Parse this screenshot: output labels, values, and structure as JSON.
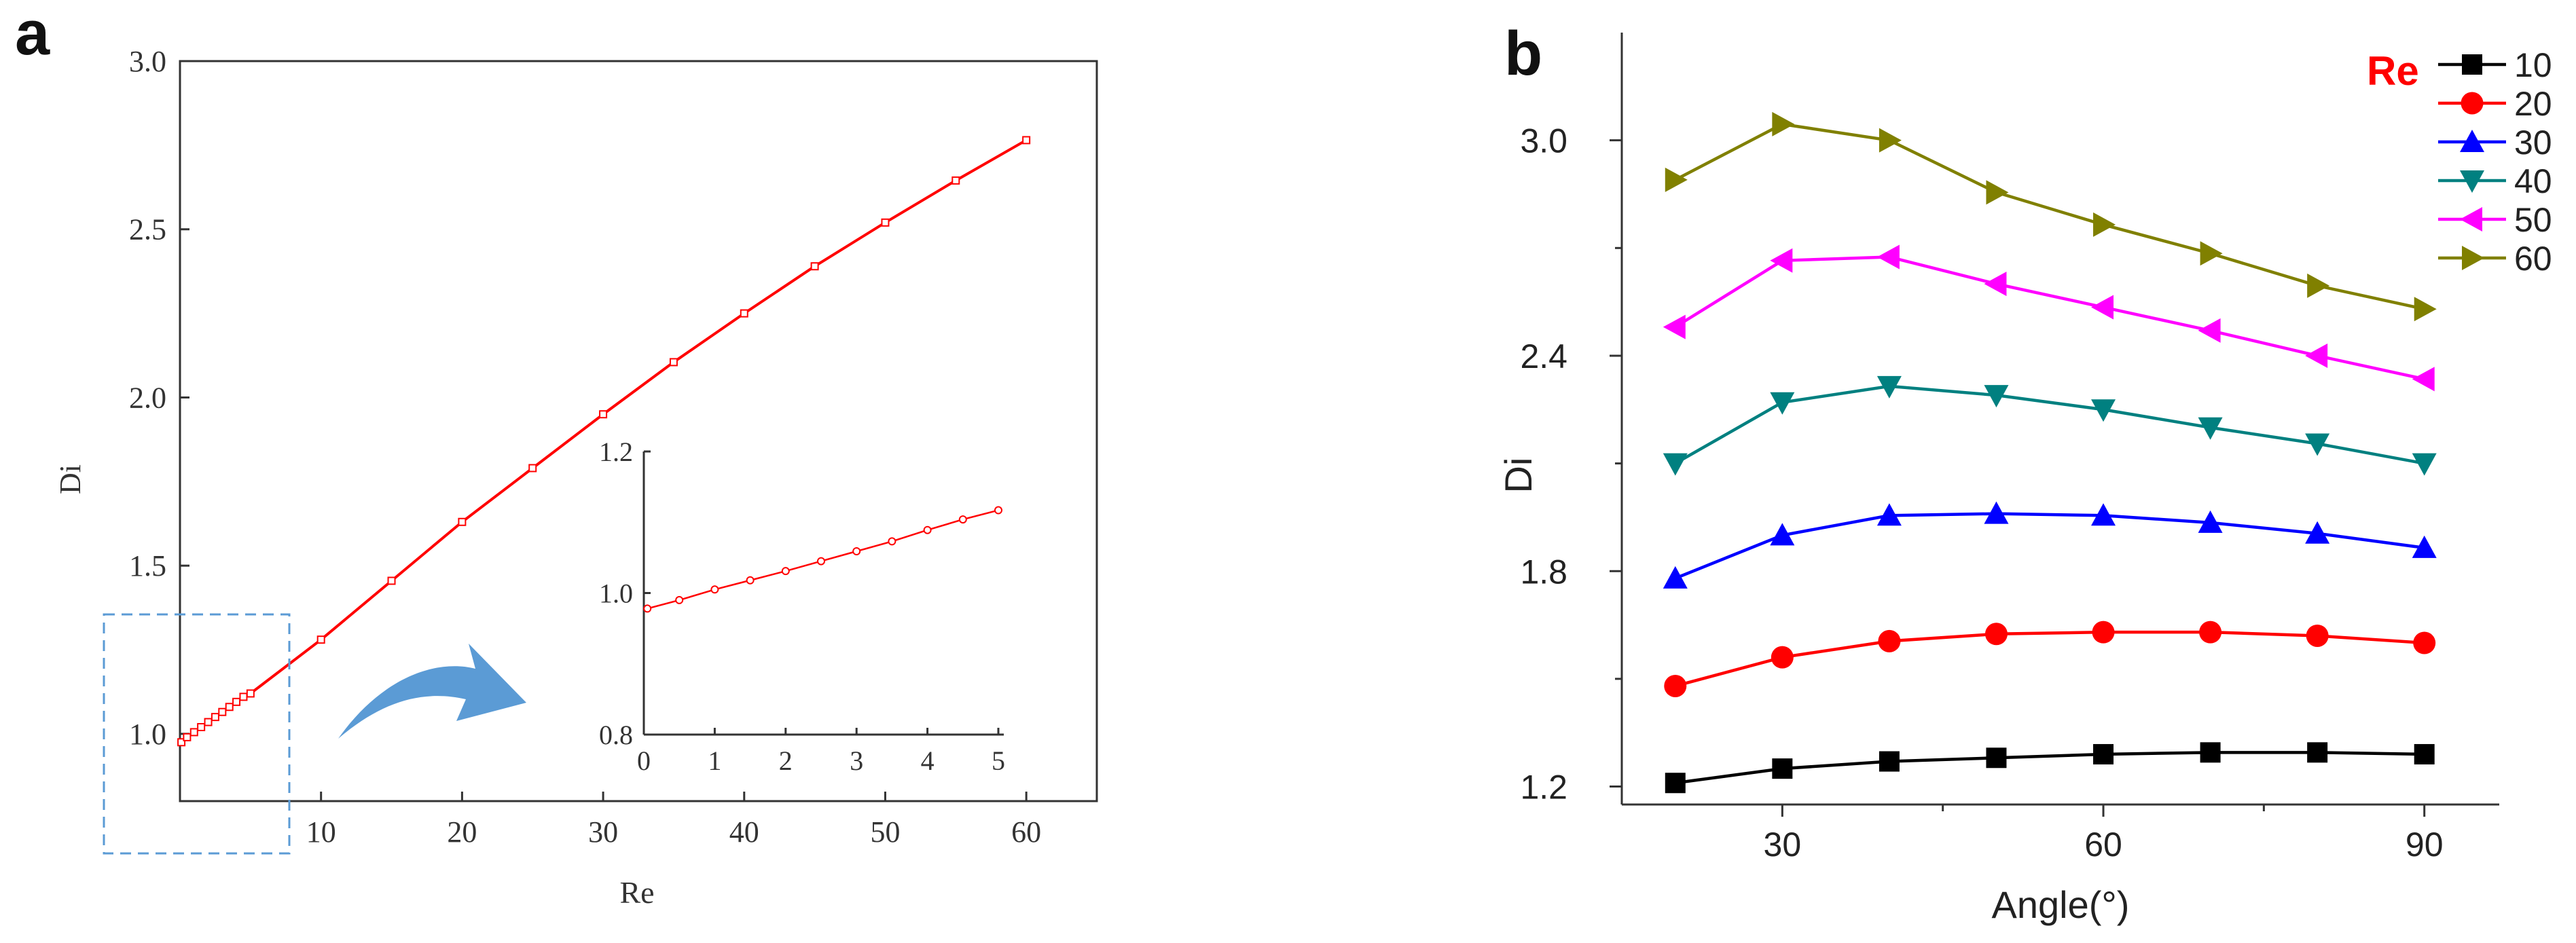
{
  "panel_a": {
    "label": "a",
    "main": {
      "xlabel": "Re",
      "ylabel": "Di",
      "xlim": [
        0,
        65
      ],
      "ylim": [
        0.8,
        3.0
      ],
      "xticks": [
        "10",
        "20",
        "30",
        "40",
        "50",
        "60"
      ],
      "yticks": [
        "1.0",
        "1.5",
        "2.0",
        "2.5",
        "3.0"
      ],
      "line_color": "#ff0000",
      "x": [
        0.1,
        0.5,
        1,
        1.5,
        2,
        2.5,
        3,
        3.5,
        4,
        4.5,
        5,
        10,
        15,
        20,
        25,
        30,
        35,
        40,
        45,
        50,
        55,
        60
      ],
      "y": [
        0.975,
        0.99,
        1.005,
        1.02,
        1.035,
        1.05,
        1.065,
        1.08,
        1.095,
        1.11,
        1.12,
        1.28,
        1.455,
        1.63,
        1.79,
        1.95,
        2.105,
        2.25,
        2.39,
        2.52,
        2.645,
        2.765
      ]
    },
    "inset": {
      "xlim": [
        0,
        5
      ],
      "ylim": [
        0.8,
        1.2
      ],
      "xticks": [
        "0",
        "1",
        "2",
        "3",
        "4",
        "5"
      ],
      "yticks": [
        "0.8",
        "1.0",
        "1.2"
      ],
      "x": [
        0.05,
        0.5,
        1,
        1.5,
        2,
        2.5,
        3,
        3.5,
        4,
        4.5,
        5
      ],
      "y": [
        0.978,
        0.99,
        1.005,
        1.018,
        1.031,
        1.045,
        1.059,
        1.073,
        1.089,
        1.104,
        1.117
      ]
    },
    "highlight_box_color": "#5b9bd5",
    "arrow_color": "#5b9bd5"
  },
  "chart_data": {
    "type": "line",
    "panel_label": "b",
    "title": "",
    "xlabel": "Angle(°)",
    "ylabel": "Di",
    "xlim": [
      15,
      97
    ],
    "ylim": [
      1.15,
      3.3
    ],
    "xticks": [
      "30",
      "60",
      "90"
    ],
    "yticks": [
      "1.2",
      "1.8",
      "2.4",
      "3.0"
    ],
    "legend_title": "Re",
    "legend_title_color": "#ff0000",
    "legend_position": "top-right",
    "x": [
      20,
      30,
      40,
      50,
      60,
      70,
      80,
      90
    ],
    "series": [
      {
        "name": "10",
        "color": "#000000",
        "marker": "square",
        "values": [
          1.21,
          1.25,
          1.27,
          1.28,
          1.29,
          1.295,
          1.295,
          1.29
        ]
      },
      {
        "name": "20",
        "color": "#ff0000",
        "marker": "circle",
        "values": [
          1.48,
          1.56,
          1.605,
          1.625,
          1.63,
          1.63,
          1.62,
          1.6
        ]
      },
      {
        "name": "30",
        "color": "#0000ff",
        "marker": "triangle-up",
        "values": [
          1.78,
          1.9,
          1.955,
          1.96,
          1.955,
          1.935,
          1.905,
          1.865
        ]
      },
      {
        "name": "40",
        "color": "#008080",
        "marker": "triangle-down",
        "values": [
          2.1,
          2.27,
          2.315,
          2.29,
          2.25,
          2.2,
          2.155,
          2.1
        ]
      },
      {
        "name": "50",
        "color": "#ff00ff",
        "marker": "triangle-left",
        "values": [
          2.48,
          2.665,
          2.675,
          2.6,
          2.535,
          2.47,
          2.4,
          2.335
        ]
      },
      {
        "name": "60",
        "color": "#808000",
        "marker": "triangle-right",
        "values": [
          2.89,
          3.045,
          3.0,
          2.855,
          2.765,
          2.685,
          2.595,
          2.53
        ]
      }
    ]
  }
}
